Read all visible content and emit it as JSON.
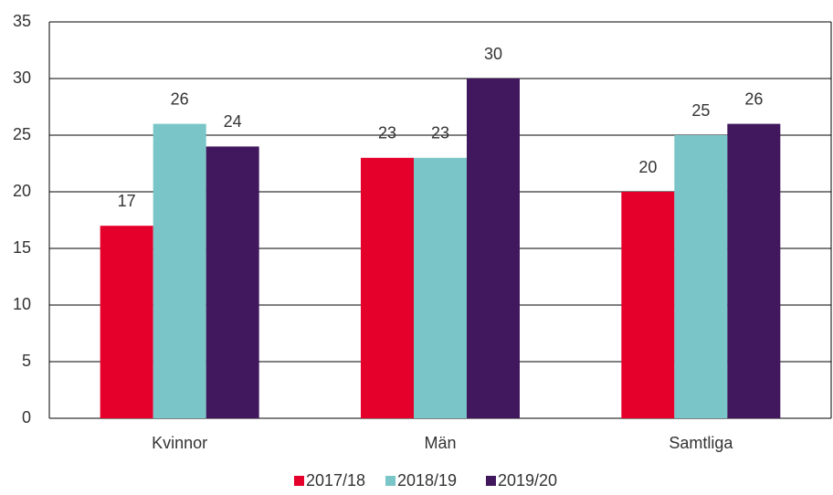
{
  "chart_data": {
    "type": "bar",
    "categories": [
      "Kvinnor",
      "Män",
      "Samtliga"
    ],
    "series": [
      {
        "name": "2017/18",
        "color": "#e4002b",
        "values": [
          17,
          23,
          20
        ]
      },
      {
        "name": "2018/19",
        "color": "#7ac5c8",
        "values": [
          26,
          23,
          25
        ]
      },
      {
        "name": "2019/20",
        "color": "#41185e",
        "values": [
          24,
          30,
          26
        ]
      }
    ],
    "ylim": [
      0,
      35
    ],
    "yticks": [
      0,
      5,
      10,
      15,
      20,
      25,
      30,
      35
    ],
    "grid": true,
    "legend": "bottom"
  }
}
